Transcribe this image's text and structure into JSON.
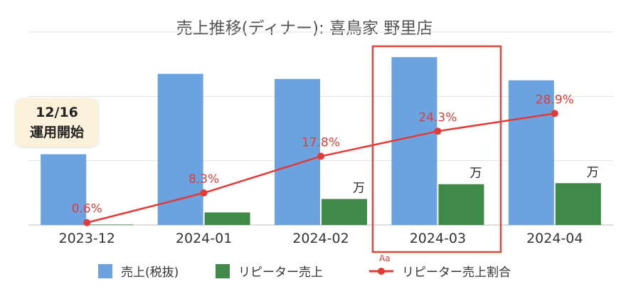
{
  "chart_data": {
    "type": "bar",
    "title": "売上推移(ディナー): 喜鳥家 野里店",
    "categories": [
      "2023-12",
      "2024-01",
      "2024-02",
      "2024-03",
      "2024-04"
    ],
    "series": [
      {
        "name": "売上(税抜)",
        "type": "bar",
        "color": "#6aa3e0",
        "values": [
          110,
          235,
          227,
          261,
          225
        ]
      },
      {
        "name": "リピーター売上",
        "type": "bar",
        "color": "#3f8a48",
        "values": [
          0.7,
          19.5,
          40.4,
          63.4,
          65.0
        ]
      },
      {
        "name": "リピーター売上割合",
        "type": "line",
        "color": "#e53935",
        "values": [
          0.6,
          8.3,
          17.8,
          24.3,
          28.9
        ],
        "labels": [
          "0.6%",
          "8.3%",
          "17.8%",
          "24.3%",
          "28.9%"
        ]
      }
    ],
    "ylim": [
      0,
      300
    ],
    "pct_ylim": [
      0,
      50
    ],
    "grid": true,
    "legend_position": "bottom",
    "highlight_category": "2024-03",
    "unit_labels": [
      "万",
      "万",
      "万"
    ],
    "unit_label_categories": [
      "2024-02",
      "2024-03",
      "2024-04"
    ]
  },
  "annotation": {
    "line1": "12/16",
    "line2": "運用開始"
  },
  "legend_marker": "Aa"
}
